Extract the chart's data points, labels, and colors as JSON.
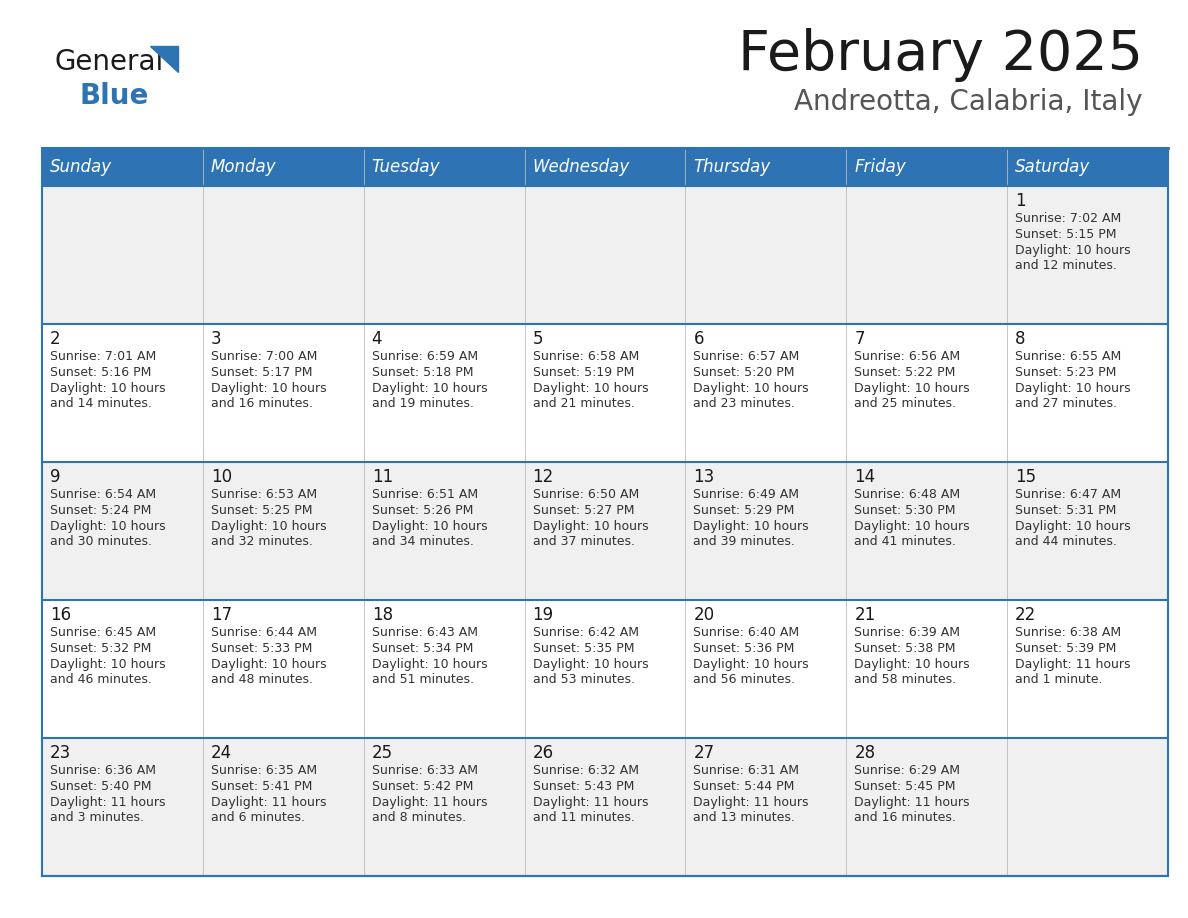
{
  "title": "February 2025",
  "subtitle": "Andreotta, Calabria, Italy",
  "header_color": "#2e74b5",
  "header_text_color": "#ffffff",
  "day_names": [
    "Sunday",
    "Monday",
    "Tuesday",
    "Wednesday",
    "Thursday",
    "Friday",
    "Saturday"
  ],
  "bg_color": "#ffffff",
  "alt_row_color": "#f0f0f0",
  "cell_border_color": "#2e74b5",
  "day_number_color": "#1a1a1a",
  "cell_text_color": "#333333",
  "calendar": [
    [
      null,
      null,
      null,
      null,
      null,
      null,
      {
        "day": 1,
        "sunrise": "7:02 AM",
        "sunset": "5:15 PM",
        "daylight": "10 hours\nand 12 minutes."
      }
    ],
    [
      {
        "day": 2,
        "sunrise": "7:01 AM",
        "sunset": "5:16 PM",
        "daylight": "10 hours\nand 14 minutes."
      },
      {
        "day": 3,
        "sunrise": "7:00 AM",
        "sunset": "5:17 PM",
        "daylight": "10 hours\nand 16 minutes."
      },
      {
        "day": 4,
        "sunrise": "6:59 AM",
        "sunset": "5:18 PM",
        "daylight": "10 hours\nand 19 minutes."
      },
      {
        "day": 5,
        "sunrise": "6:58 AM",
        "sunset": "5:19 PM",
        "daylight": "10 hours\nand 21 minutes."
      },
      {
        "day": 6,
        "sunrise": "6:57 AM",
        "sunset": "5:20 PM",
        "daylight": "10 hours\nand 23 minutes."
      },
      {
        "day": 7,
        "sunrise": "6:56 AM",
        "sunset": "5:22 PM",
        "daylight": "10 hours\nand 25 minutes."
      },
      {
        "day": 8,
        "sunrise": "6:55 AM",
        "sunset": "5:23 PM",
        "daylight": "10 hours\nand 27 minutes."
      }
    ],
    [
      {
        "day": 9,
        "sunrise": "6:54 AM",
        "sunset": "5:24 PM",
        "daylight": "10 hours\nand 30 minutes."
      },
      {
        "day": 10,
        "sunrise": "6:53 AM",
        "sunset": "5:25 PM",
        "daylight": "10 hours\nand 32 minutes."
      },
      {
        "day": 11,
        "sunrise": "6:51 AM",
        "sunset": "5:26 PM",
        "daylight": "10 hours\nand 34 minutes."
      },
      {
        "day": 12,
        "sunrise": "6:50 AM",
        "sunset": "5:27 PM",
        "daylight": "10 hours\nand 37 minutes."
      },
      {
        "day": 13,
        "sunrise": "6:49 AM",
        "sunset": "5:29 PM",
        "daylight": "10 hours\nand 39 minutes."
      },
      {
        "day": 14,
        "sunrise": "6:48 AM",
        "sunset": "5:30 PM",
        "daylight": "10 hours\nand 41 minutes."
      },
      {
        "day": 15,
        "sunrise": "6:47 AM",
        "sunset": "5:31 PM",
        "daylight": "10 hours\nand 44 minutes."
      }
    ],
    [
      {
        "day": 16,
        "sunrise": "6:45 AM",
        "sunset": "5:32 PM",
        "daylight": "10 hours\nand 46 minutes."
      },
      {
        "day": 17,
        "sunrise": "6:44 AM",
        "sunset": "5:33 PM",
        "daylight": "10 hours\nand 48 minutes."
      },
      {
        "day": 18,
        "sunrise": "6:43 AM",
        "sunset": "5:34 PM",
        "daylight": "10 hours\nand 51 minutes."
      },
      {
        "day": 19,
        "sunrise": "6:42 AM",
        "sunset": "5:35 PM",
        "daylight": "10 hours\nand 53 minutes."
      },
      {
        "day": 20,
        "sunrise": "6:40 AM",
        "sunset": "5:36 PM",
        "daylight": "10 hours\nand 56 minutes."
      },
      {
        "day": 21,
        "sunrise": "6:39 AM",
        "sunset": "5:38 PM",
        "daylight": "10 hours\nand 58 minutes."
      },
      {
        "day": 22,
        "sunrise": "6:38 AM",
        "sunset": "5:39 PM",
        "daylight": "11 hours\nand 1 minute."
      }
    ],
    [
      {
        "day": 23,
        "sunrise": "6:36 AM",
        "sunset": "5:40 PM",
        "daylight": "11 hours\nand 3 minutes."
      },
      {
        "day": 24,
        "sunrise": "6:35 AM",
        "sunset": "5:41 PM",
        "daylight": "11 hours\nand 6 minutes."
      },
      {
        "day": 25,
        "sunrise": "6:33 AM",
        "sunset": "5:42 PM",
        "daylight": "11 hours\nand 8 minutes."
      },
      {
        "day": 26,
        "sunrise": "6:32 AM",
        "sunset": "5:43 PM",
        "daylight": "11 hours\nand 11 minutes."
      },
      {
        "day": 27,
        "sunrise": "6:31 AM",
        "sunset": "5:44 PM",
        "daylight": "11 hours\nand 13 minutes."
      },
      {
        "day": 28,
        "sunrise": "6:29 AM",
        "sunset": "5:45 PM",
        "daylight": "11 hours\nand 16 minutes."
      },
      null
    ]
  ],
  "figwidth": 11.88,
  "figheight": 9.18,
  "dpi": 100
}
